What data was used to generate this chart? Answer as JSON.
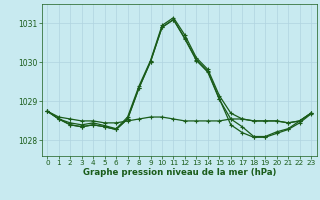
{
  "title": "Graphe pression niveau de la mer (hPa)",
  "background_color": "#c8eaf0",
  "grid_color": "#b0d4e0",
  "line_color": "#1a5c1a",
  "xlim": [
    -0.5,
    23.5
  ],
  "ylim": [
    1027.6,
    1031.5
  ],
  "yticks": [
    1028,
    1029,
    1030,
    1031
  ],
  "xticks": [
    0,
    1,
    2,
    3,
    4,
    5,
    6,
    7,
    8,
    9,
    10,
    11,
    12,
    13,
    14,
    15,
    16,
    17,
    18,
    19,
    20,
    21,
    22,
    23
  ],
  "series": [
    {
      "x": [
        0,
        1,
        2,
        3,
        4,
        5,
        6,
        7,
        8,
        9,
        10,
        11,
        12,
        13,
        14,
        15,
        16,
        17,
        18,
        19,
        20,
        21,
        22,
        23
      ],
      "y": [
        1028.75,
        1028.6,
        1028.55,
        1028.5,
        1028.5,
        1028.45,
        1028.45,
        1028.5,
        1028.55,
        1028.6,
        1028.6,
        1028.55,
        1028.5,
        1028.5,
        1028.5,
        1028.5,
        1028.55,
        1028.55,
        1028.5,
        1028.5,
        1028.5,
        1028.45,
        1028.5,
        1028.7
      ]
    },
    {
      "x": [
        0,
        1,
        2,
        3,
        4,
        5,
        6,
        7,
        8,
        9,
        10,
        11,
        12,
        13,
        14,
        15,
        16,
        17,
        18,
        19,
        20,
        21,
        22,
        23
      ],
      "y": [
        1028.75,
        1028.55,
        1028.45,
        1028.4,
        1028.45,
        1028.38,
        1028.3,
        1028.6,
        1029.4,
        1030.05,
        1030.95,
        1031.15,
        1030.7,
        1030.12,
        1029.82,
        1029.15,
        1028.7,
        1028.55,
        1028.5,
        1028.5,
        1028.5,
        1028.45,
        1028.5,
        1028.7
      ]
    },
    {
      "x": [
        0,
        1,
        2,
        3,
        4,
        5,
        6,
        7,
        8,
        9,
        10,
        11,
        12,
        13,
        14,
        15,
        16,
        17,
        18,
        19,
        20,
        21,
        22,
        23
      ],
      "y": [
        1028.75,
        1028.55,
        1028.4,
        1028.35,
        1028.4,
        1028.35,
        1028.28,
        1028.55,
        1029.35,
        1030.02,
        1030.9,
        1031.1,
        1030.6,
        1030.05,
        1029.75,
        1029.05,
        1028.55,
        1028.35,
        1028.1,
        1028.1,
        1028.22,
        1028.3,
        1028.5,
        1028.7
      ]
    },
    {
      "x": [
        0,
        1,
        2,
        3,
        4,
        5,
        6,
        7,
        8,
        9,
        10,
        11,
        12,
        13,
        14,
        15,
        16,
        17,
        18,
        19,
        20,
        21,
        22,
        23
      ],
      "y": [
        1028.75,
        1028.55,
        1028.4,
        1028.35,
        1028.4,
        1028.35,
        1028.28,
        1028.55,
        1029.35,
        1030.02,
        1030.9,
        1031.1,
        1030.62,
        1030.07,
        1029.77,
        1029.07,
        1028.4,
        1028.2,
        1028.08,
        1028.08,
        1028.18,
        1028.28,
        1028.45,
        1028.68
      ]
    }
  ]
}
